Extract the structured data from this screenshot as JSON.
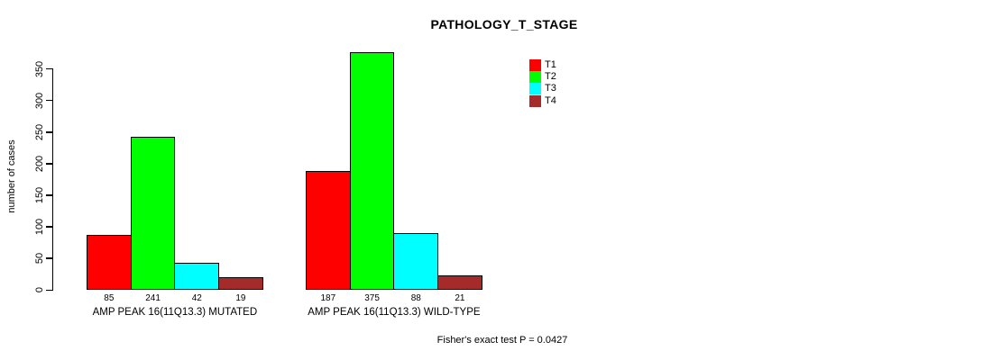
{
  "chart_data": {
    "type": "bar",
    "title": "PATHOLOGY_T_STAGE",
    "ylabel": "number of cases",
    "xlabel": "",
    "groups": [
      "AMP PEAK 16(11Q13.3) MUTATED",
      "AMP PEAK 16(11Q13.3) WILD-TYPE"
    ],
    "series": [
      {
        "name": "T1",
        "color": "#FF0000",
        "values": [
          85,
          187
        ]
      },
      {
        "name": "T2",
        "color": "#00FF00",
        "values": [
          241,
          375
        ]
      },
      {
        "name": "T3",
        "color": "#00FFFF",
        "values": [
          42,
          88
        ]
      },
      {
        "name": "T4",
        "color": "#A52A2A",
        "values": [
          19,
          21
        ]
      }
    ],
    "bar_value_labels": [
      [
        "85",
        "241",
        "42",
        "19"
      ],
      [
        "187",
        "375",
        "88",
        "21"
      ]
    ],
    "yticks": [
      0,
      50,
      100,
      150,
      200,
      250,
      300,
      350
    ],
    "ylim": [
      0,
      375
    ],
    "grid": false,
    "legend_position": "top-right",
    "legend_entries": [
      "T1",
      "T2",
      "T3",
      "T4"
    ],
    "annotation": "Fisher's exact test P = 0.0427"
  }
}
